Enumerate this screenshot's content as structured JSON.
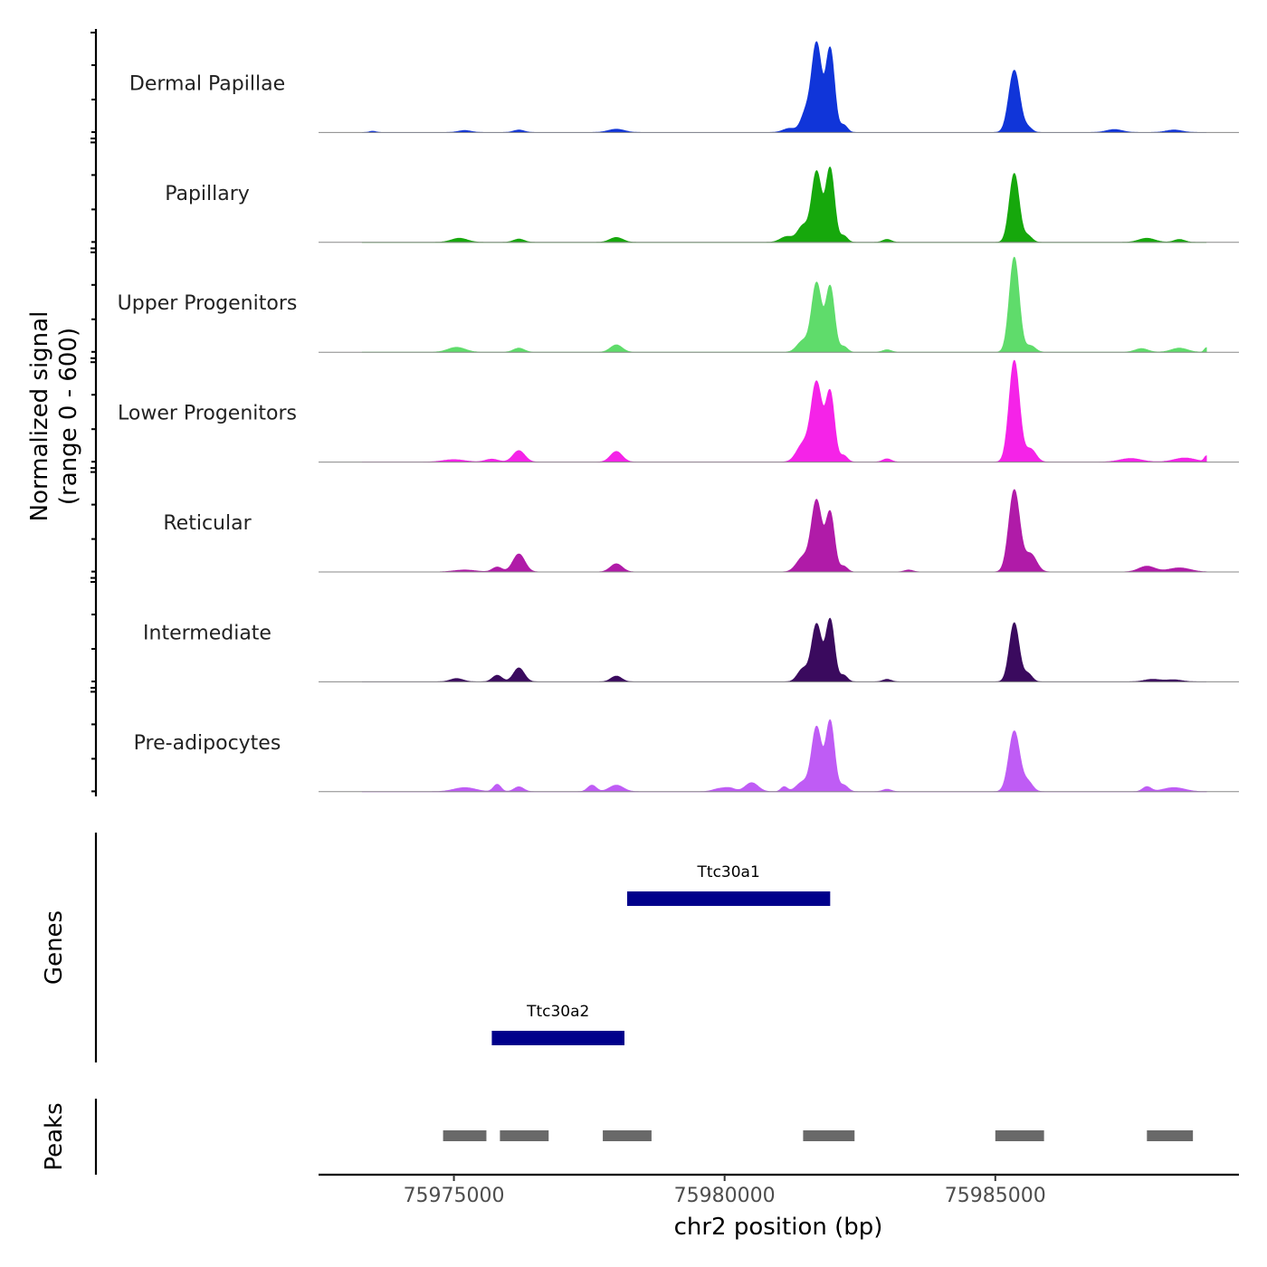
{
  "chart_data": {
    "type": "area",
    "title": "",
    "chromosome": "chr2",
    "xlabel": "chr2 position (bp)",
    "ylabel": [
      "Normalized signal",
      "(range 0 - 600)"
    ],
    "xlim": [
      75972500,
      75989500
    ],
    "ylim": [
      0,
      600
    ],
    "x_ticks": [
      75975000,
      75980000,
      75985000
    ],
    "x_tick_labels": [
      "75975000",
      "75980000",
      "75985000"
    ],
    "signal_start": 75973300,
    "signal_end": 75988900,
    "series": [
      {
        "name": "Dermal Papillae",
        "color": "#1035d9",
        "peaks": [
          {
            "center": 75981700,
            "height": 540,
            "width": 90
          },
          {
            "center": 75981950,
            "height": 510,
            "width": 80
          },
          {
            "center": 75981500,
            "height": 120,
            "width": 90
          },
          {
            "center": 75982200,
            "height": 45,
            "width": 70
          },
          {
            "center": 75985350,
            "height": 380,
            "width": 100
          },
          {
            "center": 75985600,
            "height": 30,
            "width": 80
          },
          {
            "center": 75981200,
            "height": 25,
            "width": 120
          },
          {
            "center": 75978000,
            "height": 20,
            "width": 150
          },
          {
            "center": 75976200,
            "height": 15,
            "width": 100
          },
          {
            "center": 75975200,
            "height": 12,
            "width": 120
          },
          {
            "center": 75987200,
            "height": 18,
            "width": 150
          },
          {
            "center": 75988300,
            "height": 15,
            "width": 150
          },
          {
            "center": 75973500,
            "height": 8,
            "width": 60
          }
        ]
      },
      {
        "name": "Papillary",
        "color": "#16a80c",
        "peaks": [
          {
            "center": 75981700,
            "height": 430,
            "width": 90
          },
          {
            "center": 75981950,
            "height": 450,
            "width": 80
          },
          {
            "center": 75981450,
            "height": 100,
            "width": 100
          },
          {
            "center": 75982200,
            "height": 40,
            "width": 70
          },
          {
            "center": 75985350,
            "height": 420,
            "width": 90
          },
          {
            "center": 75985600,
            "height": 40,
            "width": 80
          },
          {
            "center": 75981150,
            "height": 35,
            "width": 120
          },
          {
            "center": 75978000,
            "height": 30,
            "width": 120
          },
          {
            "center": 75976200,
            "height": 20,
            "width": 100
          },
          {
            "center": 75975100,
            "height": 25,
            "width": 150
          },
          {
            "center": 75987800,
            "height": 25,
            "width": 150
          },
          {
            "center": 75988400,
            "height": 18,
            "width": 100
          },
          {
            "center": 75983000,
            "height": 18,
            "width": 80
          }
        ]
      },
      {
        "name": "Upper Progenitors",
        "color": "#5fdc6b",
        "peaks": [
          {
            "center": 75981700,
            "height": 420,
            "width": 90
          },
          {
            "center": 75981950,
            "height": 400,
            "width": 80
          },
          {
            "center": 75981450,
            "height": 70,
            "width": 110
          },
          {
            "center": 75982200,
            "height": 35,
            "width": 70
          },
          {
            "center": 75985350,
            "height": 580,
            "width": 90
          },
          {
            "center": 75985650,
            "height": 40,
            "width": 90
          },
          {
            "center": 75978000,
            "height": 45,
            "width": 110
          },
          {
            "center": 75976200,
            "height": 25,
            "width": 100
          },
          {
            "center": 75975050,
            "height": 30,
            "width": 160
          },
          {
            "center": 75987700,
            "height": 22,
            "width": 120
          },
          {
            "center": 75988400,
            "height": 25,
            "width": 150
          },
          {
            "center": 75988900,
            "height": 28,
            "width": 40
          },
          {
            "center": 75983000,
            "height": 15,
            "width": 80
          }
        ]
      },
      {
        "name": "Lower Progenitors",
        "color": "#f523e8",
        "peaks": [
          {
            "center": 75981700,
            "height": 480,
            "width": 100
          },
          {
            "center": 75981950,
            "height": 420,
            "width": 80
          },
          {
            "center": 75981450,
            "height": 110,
            "width": 120
          },
          {
            "center": 75982200,
            "height": 40,
            "width": 70
          },
          {
            "center": 75985350,
            "height": 620,
            "width": 95
          },
          {
            "center": 75985650,
            "height": 80,
            "width": 100
          },
          {
            "center": 75976200,
            "height": 70,
            "width": 110
          },
          {
            "center": 75978000,
            "height": 65,
            "width": 110
          },
          {
            "center": 75975700,
            "height": 18,
            "width": 120
          },
          {
            "center": 75975000,
            "height": 15,
            "width": 200
          },
          {
            "center": 75987500,
            "height": 22,
            "width": 200
          },
          {
            "center": 75988500,
            "height": 25,
            "width": 200
          },
          {
            "center": 75988900,
            "height": 35,
            "width": 40
          },
          {
            "center": 75983000,
            "height": 20,
            "width": 80
          }
        ]
      },
      {
        "name": "Reticular",
        "color": "#b01ba8",
        "peaks": [
          {
            "center": 75981700,
            "height": 430,
            "width": 95
          },
          {
            "center": 75981950,
            "height": 360,
            "width": 80
          },
          {
            "center": 75981450,
            "height": 90,
            "width": 120
          },
          {
            "center": 75982200,
            "height": 35,
            "width": 70
          },
          {
            "center": 75985350,
            "height": 500,
            "width": 100
          },
          {
            "center": 75985650,
            "height": 110,
            "width": 110
          },
          {
            "center": 75976200,
            "height": 110,
            "width": 110
          },
          {
            "center": 75975800,
            "height": 30,
            "width": 90
          },
          {
            "center": 75978000,
            "height": 50,
            "width": 110
          },
          {
            "center": 75975200,
            "height": 12,
            "width": 200
          },
          {
            "center": 75987800,
            "height": 35,
            "width": 150
          },
          {
            "center": 75988400,
            "height": 25,
            "width": 200
          },
          {
            "center": 75983400,
            "height": 12,
            "width": 80
          }
        ]
      },
      {
        "name": "Intermediate",
        "color": "#3a0a5e",
        "peaks": [
          {
            "center": 75981700,
            "height": 350,
            "width": 90
          },
          {
            "center": 75981950,
            "height": 380,
            "width": 80
          },
          {
            "center": 75981450,
            "height": 80,
            "width": 100
          },
          {
            "center": 75982200,
            "height": 40,
            "width": 70
          },
          {
            "center": 75985350,
            "height": 360,
            "width": 90
          },
          {
            "center": 75985600,
            "height": 50,
            "width": 80
          },
          {
            "center": 75976200,
            "height": 85,
            "width": 100
          },
          {
            "center": 75975800,
            "height": 40,
            "width": 90
          },
          {
            "center": 75978000,
            "height": 35,
            "width": 100
          },
          {
            "center": 75975050,
            "height": 20,
            "width": 120
          },
          {
            "center": 75983000,
            "height": 15,
            "width": 80
          },
          {
            "center": 75987900,
            "height": 15,
            "width": 150
          },
          {
            "center": 75988300,
            "height": 12,
            "width": 150
          }
        ]
      },
      {
        "name": "Pre-adipocytes",
        "color": "#bf5cf5",
        "peaks": [
          {
            "center": 75981700,
            "height": 390,
            "width": 90
          },
          {
            "center": 75981950,
            "height": 430,
            "width": 80
          },
          {
            "center": 75981450,
            "height": 60,
            "width": 120
          },
          {
            "center": 75982200,
            "height": 40,
            "width": 80
          },
          {
            "center": 75985350,
            "height": 370,
            "width": 100
          },
          {
            "center": 75985600,
            "height": 60,
            "width": 90
          },
          {
            "center": 75980500,
            "height": 55,
            "width": 120
          },
          {
            "center": 75980100,
            "height": 20,
            "width": 100
          },
          {
            "center": 75981100,
            "height": 30,
            "width": 60
          },
          {
            "center": 75978000,
            "height": 40,
            "width": 130
          },
          {
            "center": 75977550,
            "height": 40,
            "width": 80
          },
          {
            "center": 75976200,
            "height": 30,
            "width": 90
          },
          {
            "center": 75975800,
            "height": 45,
            "width": 70
          },
          {
            "center": 75975200,
            "height": 25,
            "width": 200
          },
          {
            "center": 75979900,
            "height": 18,
            "width": 120
          },
          {
            "center": 75987800,
            "height": 30,
            "width": 80
          },
          {
            "center": 75988300,
            "height": 25,
            "width": 200
          },
          {
            "center": 75983000,
            "height": 15,
            "width": 80
          }
        ]
      }
    ],
    "genes": {
      "label": "Genes",
      "color": "#00008b",
      "items": [
        {
          "name": "Ttc30a1",
          "start": 75978200,
          "end": 75981950,
          "row": 0
        },
        {
          "name": "Ttc30a2",
          "start": 75975700,
          "end": 75978150,
          "row": 1
        }
      ]
    },
    "peaks_track": {
      "label": "Peaks",
      "color": "#696969",
      "regions": [
        [
          75974800,
          75975600
        ],
        [
          75975850,
          75976750
        ],
        [
          75977750,
          75978650
        ],
        [
          75981450,
          75982400
        ],
        [
          75985000,
          75985900
        ],
        [
          75987800,
          75988650
        ]
      ]
    }
  }
}
